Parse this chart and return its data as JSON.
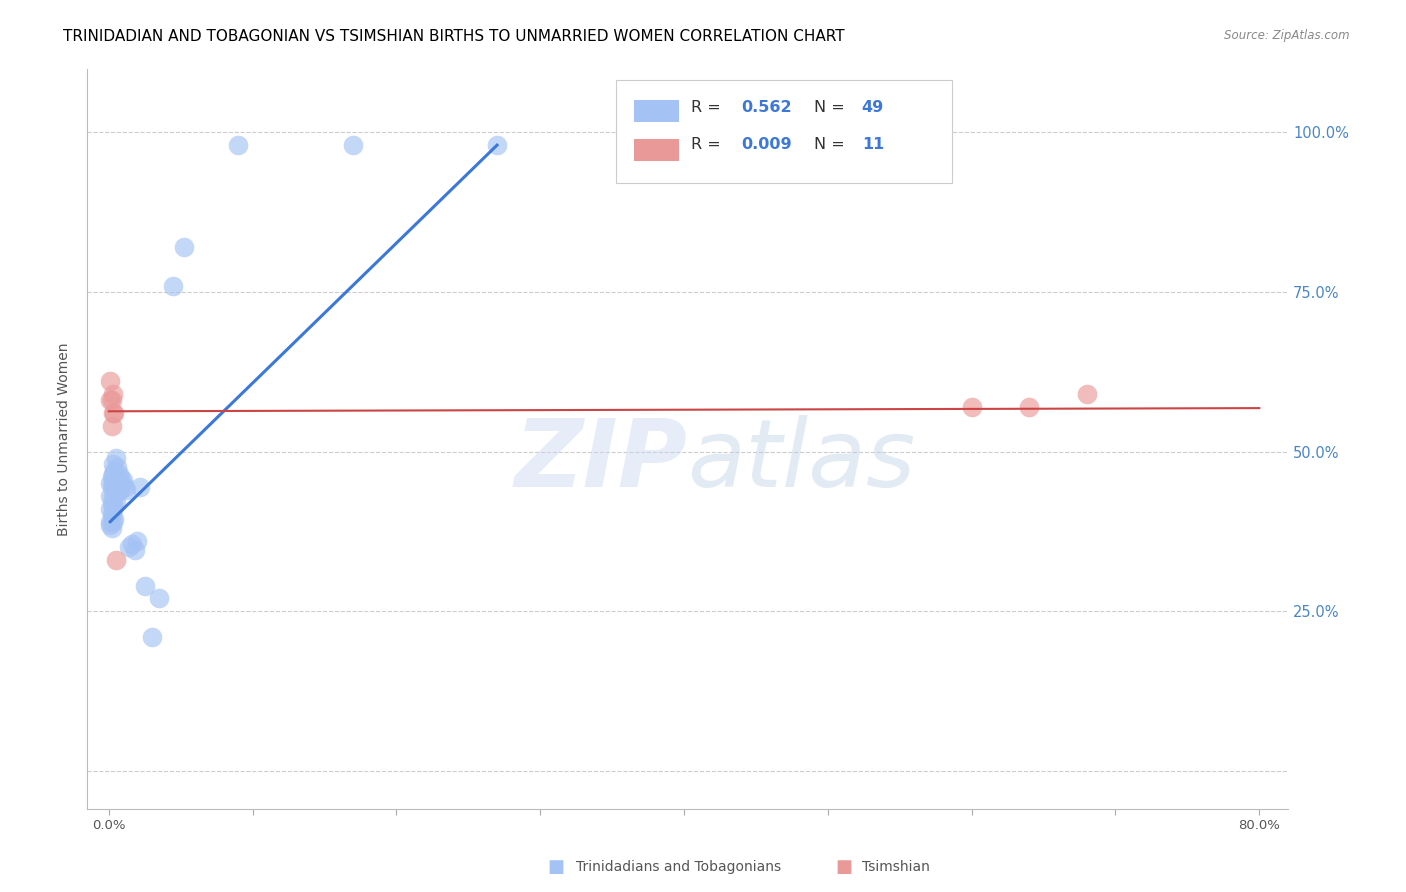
{
  "title": "TRINIDADIAN AND TOBAGONIAN VS TSIMSHIAN BIRTHS TO UNMARRIED WOMEN CORRELATION CHART",
  "source": "Source: ZipAtlas.com",
  "ylabel_ticks": [
    0.0,
    0.25,
    0.5,
    0.75,
    1.0
  ],
  "ylabel_labels": [
    "",
    "25.0%",
    "50.0%",
    "75.0%",
    "100.0%"
  ],
  "ylabel_axis": "Births to Unmarried Women",
  "legend_blue_R": "0.562",
  "legend_blue_N": "49",
  "legend_pink_R": "0.009",
  "legend_pink_N": "11",
  "legend_label_blue": "Trinidadians and Tobagonians",
  "legend_label_pink": "Tsimshian",
  "watermark_zip": "ZIP",
  "watermark_atlas": "atlas",
  "blue_color": "#a4c2f4",
  "pink_color": "#ea9999",
  "blue_line_color": "#3c78d8",
  "pink_line_color": "#cc4444",
  "blue_scatter_x": [
    0.001,
    0.001,
    0.001,
    0.001,
    0.001,
    0.002,
    0.002,
    0.002,
    0.002,
    0.002,
    0.003,
    0.003,
    0.003,
    0.003,
    0.003,
    0.003,
    0.004,
    0.004,
    0.004,
    0.004,
    0.004,
    0.005,
    0.005,
    0.005,
    0.005,
    0.006,
    0.006,
    0.006,
    0.007,
    0.007,
    0.008,
    0.008,
    0.009,
    0.01,
    0.011,
    0.012,
    0.014,
    0.016,
    0.018,
    0.02,
    0.022,
    0.025,
    0.03,
    0.035,
    0.045,
    0.052,
    0.09,
    0.17,
    0.27
  ],
  "blue_scatter_y": [
    0.385,
    0.39,
    0.41,
    0.43,
    0.45,
    0.38,
    0.4,
    0.42,
    0.445,
    0.46,
    0.39,
    0.41,
    0.43,
    0.45,
    0.465,
    0.48,
    0.395,
    0.415,
    0.44,
    0.455,
    0.47,
    0.42,
    0.445,
    0.46,
    0.49,
    0.435,
    0.455,
    0.475,
    0.44,
    0.465,
    0.44,
    0.46,
    0.45,
    0.455,
    0.445,
    0.44,
    0.35,
    0.355,
    0.345,
    0.36,
    0.445,
    0.29,
    0.21,
    0.27,
    0.76,
    0.82,
    0.98,
    0.98,
    0.98
  ],
  "pink_scatter_x": [
    0.001,
    0.001,
    0.002,
    0.002,
    0.003,
    0.003,
    0.004,
    0.005,
    0.6,
    0.64,
    0.68
  ],
  "pink_scatter_y": [
    0.58,
    0.61,
    0.54,
    0.58,
    0.59,
    0.56,
    0.56,
    0.33,
    0.57,
    0.57,
    0.59
  ],
  "blue_trend_x": [
    0.001,
    0.27
  ],
  "blue_trend_y": [
    0.39,
    0.98
  ],
  "pink_trend_x": [
    0.0,
    0.8
  ],
  "pink_trend_y": [
    0.563,
    0.568
  ],
  "xlim": [
    -0.015,
    0.82
  ],
  "ylim": [
    -0.06,
    1.1
  ],
  "grid_color": "#cccccc",
  "bg_color": "#ffffff",
  "title_color": "#000000",
  "right_axis_color": "#4a86c8",
  "title_fontsize": 11,
  "axis_label_fontsize": 10,
  "tick_fontsize": 9.5
}
